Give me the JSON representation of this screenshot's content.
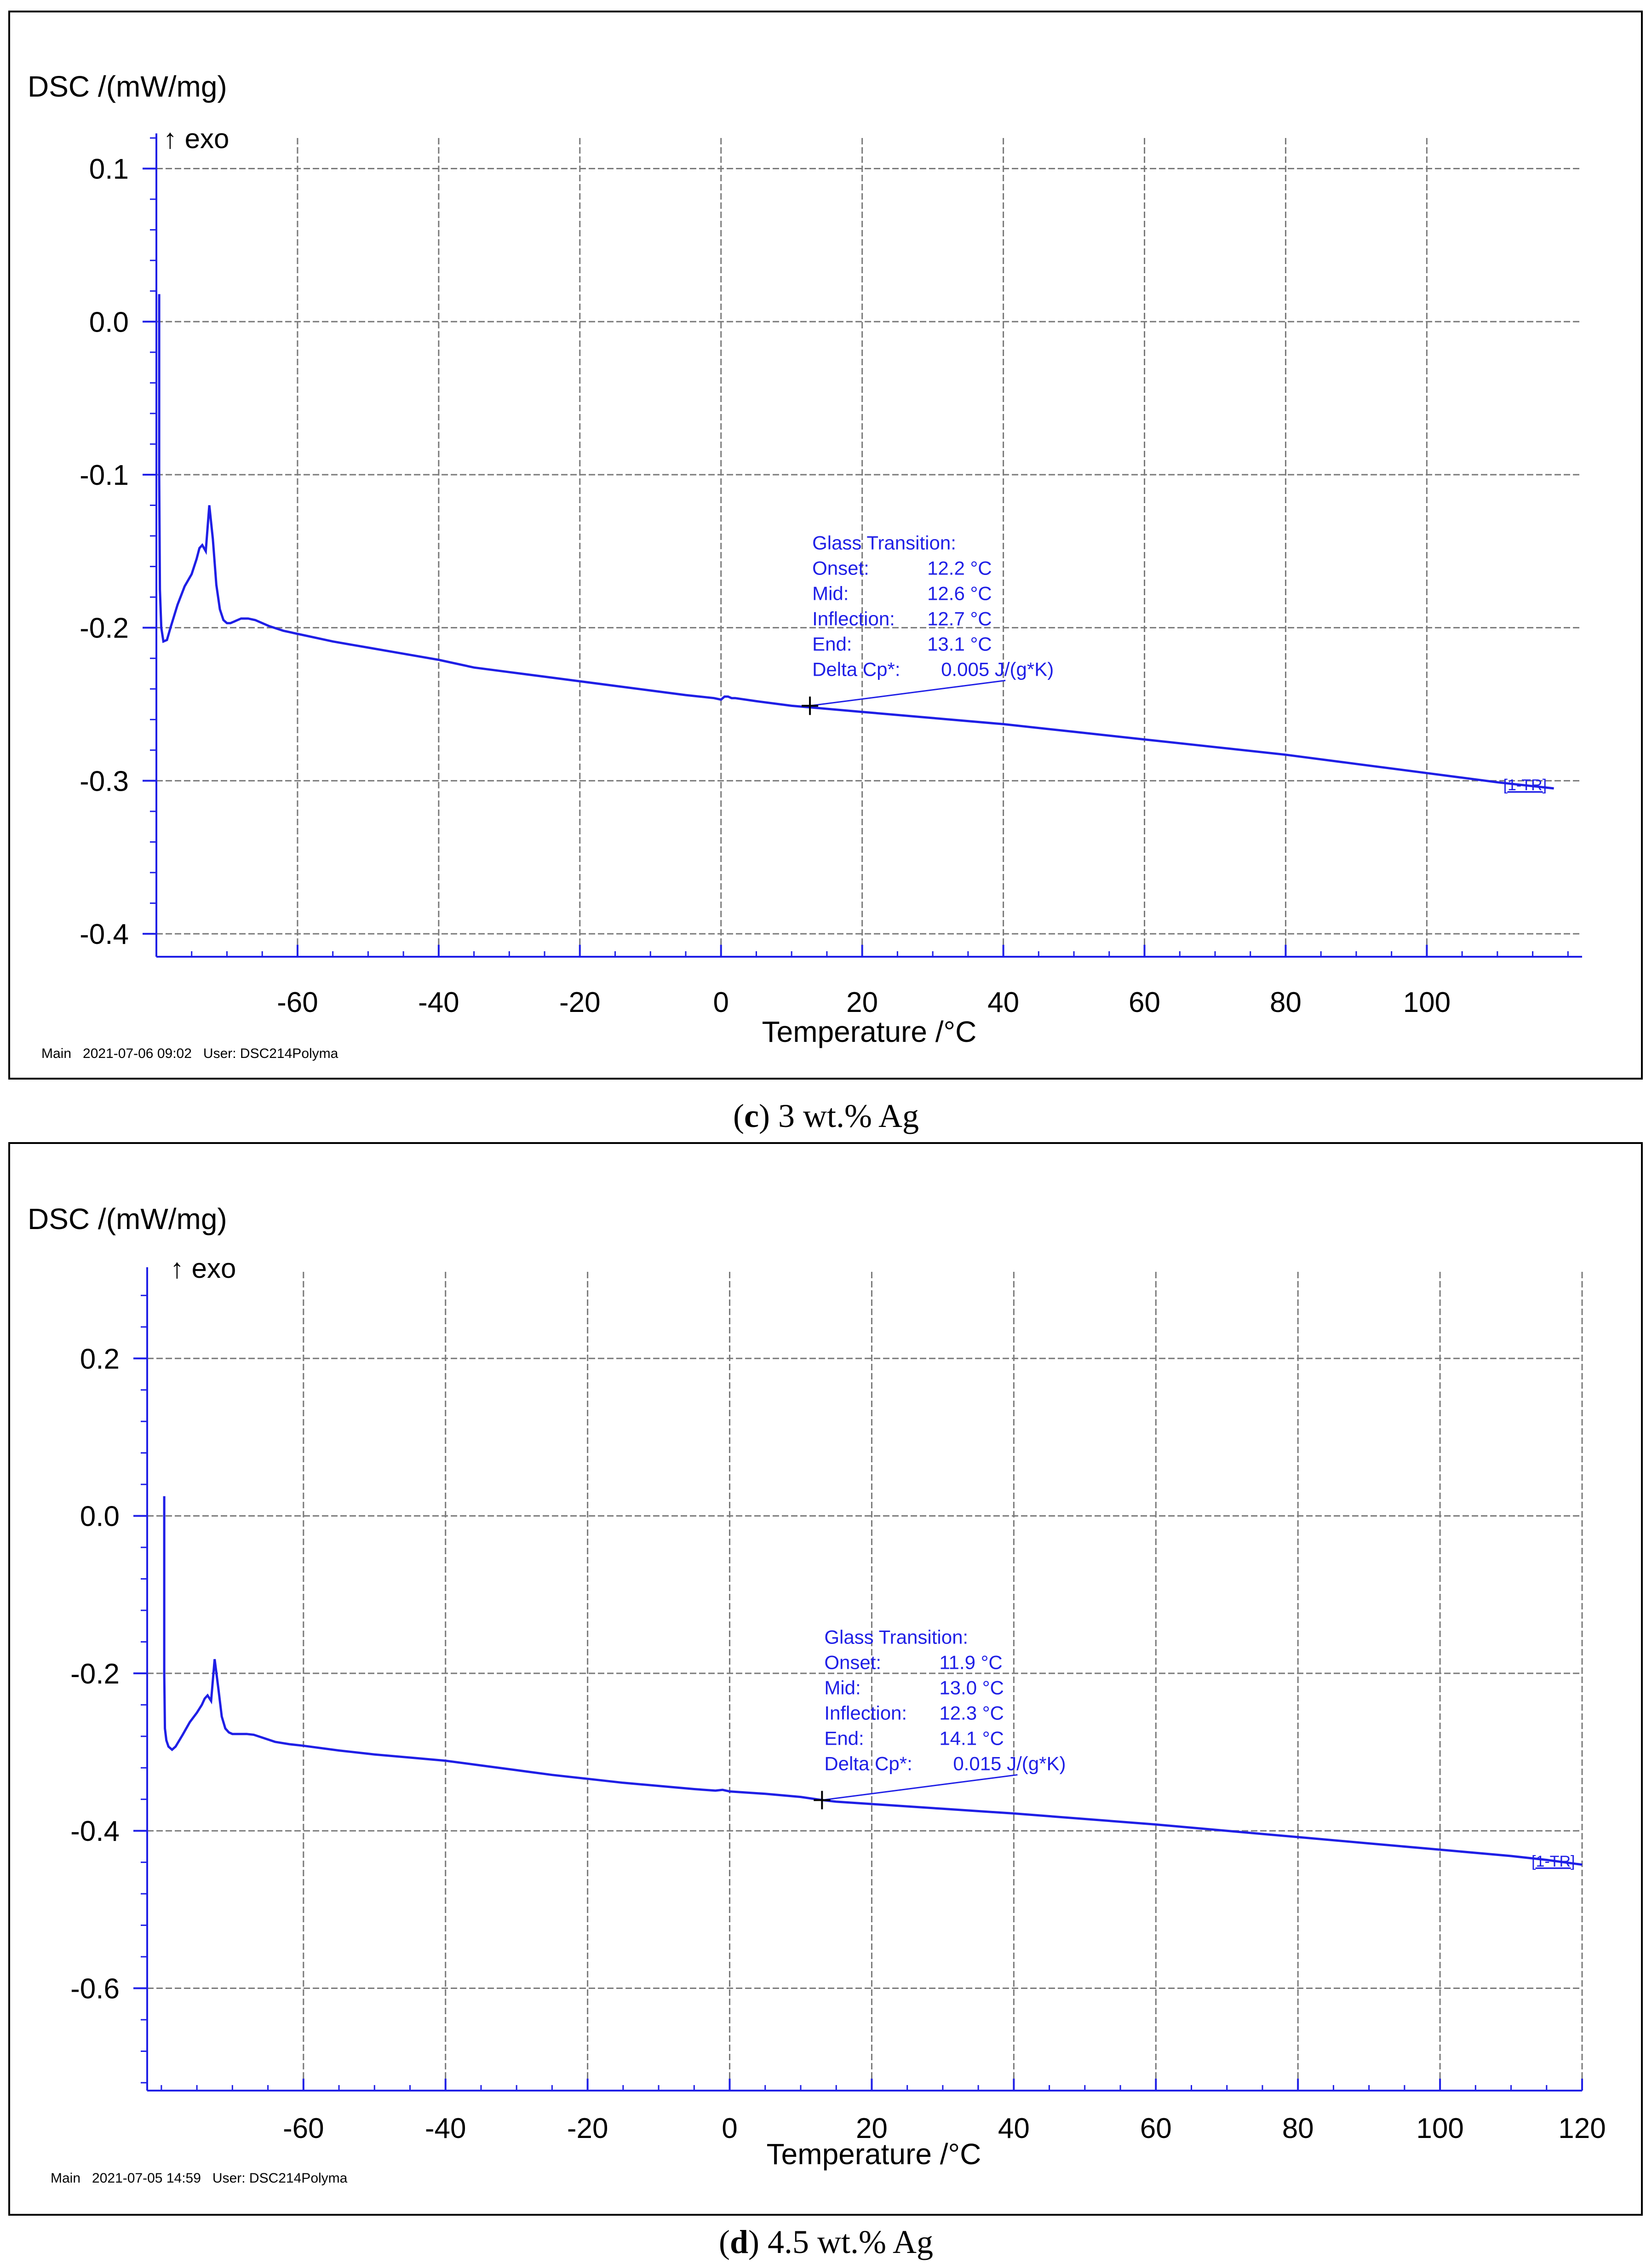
{
  "chart_data": [
    {
      "type": "line",
      "panel_label": "c",
      "caption_rest": " 3 wt.% Ag",
      "ylabel": "DSC /(mW/mg)",
      "exo_label": "↑ exo",
      "xlabel": "Temperature /°C",
      "xlim": [
        -80,
        122
      ],
      "ylim": [
        -0.415,
        0.12
      ],
      "xticks": [
        -60,
        -40,
        -20,
        0,
        20,
        40,
        60,
        80,
        100
      ],
      "xtick_labels": [
        "-60",
        "-40",
        "-20",
        "0",
        "20",
        "40",
        "60",
        "80",
        "100"
      ],
      "yticks": [
        0.1,
        0.0,
        -0.1,
        -0.2,
        -0.3,
        -0.4
      ],
      "ytick_labels": [
        "0.1",
        "0.0",
        "-0.1",
        "-0.2",
        "-0.3",
        "-0.4"
      ],
      "grid": true,
      "footer": "Main   2021-07-06 09:02   User: DSC214Polyma",
      "segment_label": "[1-TR]",
      "series": [
        {
          "name": "[1-TR]",
          "color": "#1f1fe6",
          "x": [
            -79.6,
            -79.6,
            -79.5,
            -79.3,
            -79.0,
            -78.5,
            -78.0,
            -77.0,
            -76.0,
            -75.0,
            -74.3,
            -73.9,
            -73.5,
            -73.0,
            -72.5,
            -72.0,
            -71.5,
            -71.0,
            -70.5,
            -70.0,
            -69.5,
            -69.0,
            -68.5,
            -68.0,
            -67.0,
            -66.0,
            -64.0,
            -62.0,
            -60.0,
            -55.0,
            -50.0,
            -45.0,
            -40.0,
            -35.0,
            -30.0,
            -25.0,
            -20.0,
            -15.0,
            -10.0,
            -5.0,
            -1.0,
            0.0,
            0.5,
            1.0,
            1.5,
            2.0,
            5.0,
            10.0,
            12.6,
            15.0,
            20.0,
            30.0,
            40.0,
            50.0,
            60.0,
            70.0,
            80.0,
            90.0,
            100.0,
            110.0,
            114.0,
            118.0
          ],
          "y": [
            0.018,
            -0.1,
            -0.175,
            -0.2,
            -0.209,
            -0.208,
            -0.2,
            -0.185,
            -0.173,
            -0.165,
            -0.155,
            -0.148,
            -0.146,
            -0.15,
            -0.12,
            -0.142,
            -0.172,
            -0.188,
            -0.195,
            -0.197,
            -0.197,
            -0.196,
            -0.195,
            -0.194,
            -0.194,
            -0.195,
            -0.199,
            -0.202,
            -0.204,
            -0.209,
            -0.213,
            -0.217,
            -0.221,
            -0.226,
            -0.229,
            -0.232,
            -0.235,
            -0.238,
            -0.241,
            -0.244,
            -0.246,
            -0.247,
            -0.245,
            -0.245,
            -0.246,
            -0.246,
            -0.248,
            -0.251,
            -0.252,
            -0.253,
            -0.255,
            -0.259,
            -0.263,
            -0.268,
            -0.273,
            -0.278,
            -0.283,
            -0.289,
            -0.295,
            -0.301,
            -0.303,
            -0.305
          ]
        }
      ],
      "annotation": {
        "title": "Glass Transition:",
        "rows": [
          {
            "label": "Onset:",
            "value": "12.2 °C"
          },
          {
            "label": "Mid:",
            "value": "12.6 °C"
          },
          {
            "label": "Inflection:",
            "value": "12.7 °C"
          },
          {
            "label": "End:",
            "value": "13.1 °C"
          },
          {
            "label": "Delta Cp*:",
            "value": "0.005 J/(g*K)"
          }
        ],
        "marker_x": 12.6,
        "marker_y": -0.251
      }
    },
    {
      "type": "line",
      "panel_label": "d",
      "caption_rest": " 4.5 wt.% Ag",
      "ylabel": "DSC /(mW/mg)",
      "exo_label": "↑ exo",
      "xlabel": "Temperature /°C",
      "xlim": [
        -82,
        120
      ],
      "ylim": [
        -0.73,
        0.31
      ],
      "xticks": [
        -60,
        -40,
        -20,
        0,
        20,
        40,
        60,
        80,
        100,
        120
      ],
      "xtick_labels": [
        "-60",
        "-40",
        "-20",
        "0",
        "20",
        "40",
        "60",
        "80",
        "100",
        "120"
      ],
      "yticks": [
        0.2,
        0.0,
        -0.2,
        -0.4,
        -0.6
      ],
      "ytick_labels": [
        "0.2",
        "0.0",
        "-0.2",
        "-0.4",
        "-0.6"
      ],
      "grid": true,
      "footer": "Main   2021-07-05 14:59   User: DSC214Polyma",
      "segment_label": "[1-TR]",
      "series": [
        {
          "name": "[1-TR]",
          "color": "#1f1fe6",
          "x": [
            -79.6,
            -79.6,
            -79.5,
            -79.3,
            -79.0,
            -78.5,
            -78.0,
            -77.0,
            -76.0,
            -75.0,
            -74.3,
            -73.9,
            -73.5,
            -73.0,
            -72.5,
            -72.0,
            -71.5,
            -71.0,
            -70.5,
            -70.0,
            -69.5,
            -69.0,
            -68.5,
            -68.0,
            -67.0,
            -66.0,
            -64.0,
            -62.0,
            -60.0,
            -55.0,
            -50.0,
            -45.0,
            -40.0,
            -35.0,
            -30.0,
            -25.0,
            -20.0,
            -15.0,
            -10.0,
            -5.0,
            -2.0,
            -1.0,
            0.0,
            5.0,
            10.0,
            13.0,
            15.0,
            20.0,
            30.0,
            40.0,
            50.0,
            60.0,
            70.0,
            80.0,
            90.0,
            100.0,
            110.0,
            115.0,
            120.0
          ],
          "y": [
            0.025,
            -0.2,
            -0.27,
            -0.285,
            -0.293,
            -0.297,
            -0.293,
            -0.278,
            -0.262,
            -0.25,
            -0.24,
            -0.232,
            -0.228,
            -0.235,
            -0.182,
            -0.218,
            -0.255,
            -0.27,
            -0.275,
            -0.277,
            -0.277,
            -0.277,
            -0.277,
            -0.277,
            -0.278,
            -0.281,
            -0.287,
            -0.29,
            -0.292,
            -0.298,
            -0.303,
            -0.307,
            -0.311,
            -0.317,
            -0.323,
            -0.329,
            -0.334,
            -0.339,
            -0.343,
            -0.347,
            -0.349,
            -0.348,
            -0.35,
            -0.353,
            -0.357,
            -0.361,
            -0.363,
            -0.366,
            -0.372,
            -0.378,
            -0.385,
            -0.392,
            -0.4,
            -0.408,
            -0.416,
            -0.424,
            -0.432,
            -0.437,
            -0.443
          ]
        }
      ],
      "annotation": {
        "title": "Glass Transition:",
        "rows": [
          {
            "label": "Onset:",
            "value": "11.9 °C"
          },
          {
            "label": "Mid:",
            "value": "13.0 °C"
          },
          {
            "label": "Inflection:",
            "value": "12.3 °C"
          },
          {
            "label": "End:",
            "value": "14.1 °C"
          },
          {
            "label": "Delta Cp*:",
            "value": "0.015 J/(g*K)"
          }
        ],
        "marker_x": 13.0,
        "marker_y": -0.361
      }
    }
  ],
  "colors": {
    "curve": "#1f1fe6",
    "grid": "#7a7a7a",
    "axis": "#1f1fe6"
  }
}
